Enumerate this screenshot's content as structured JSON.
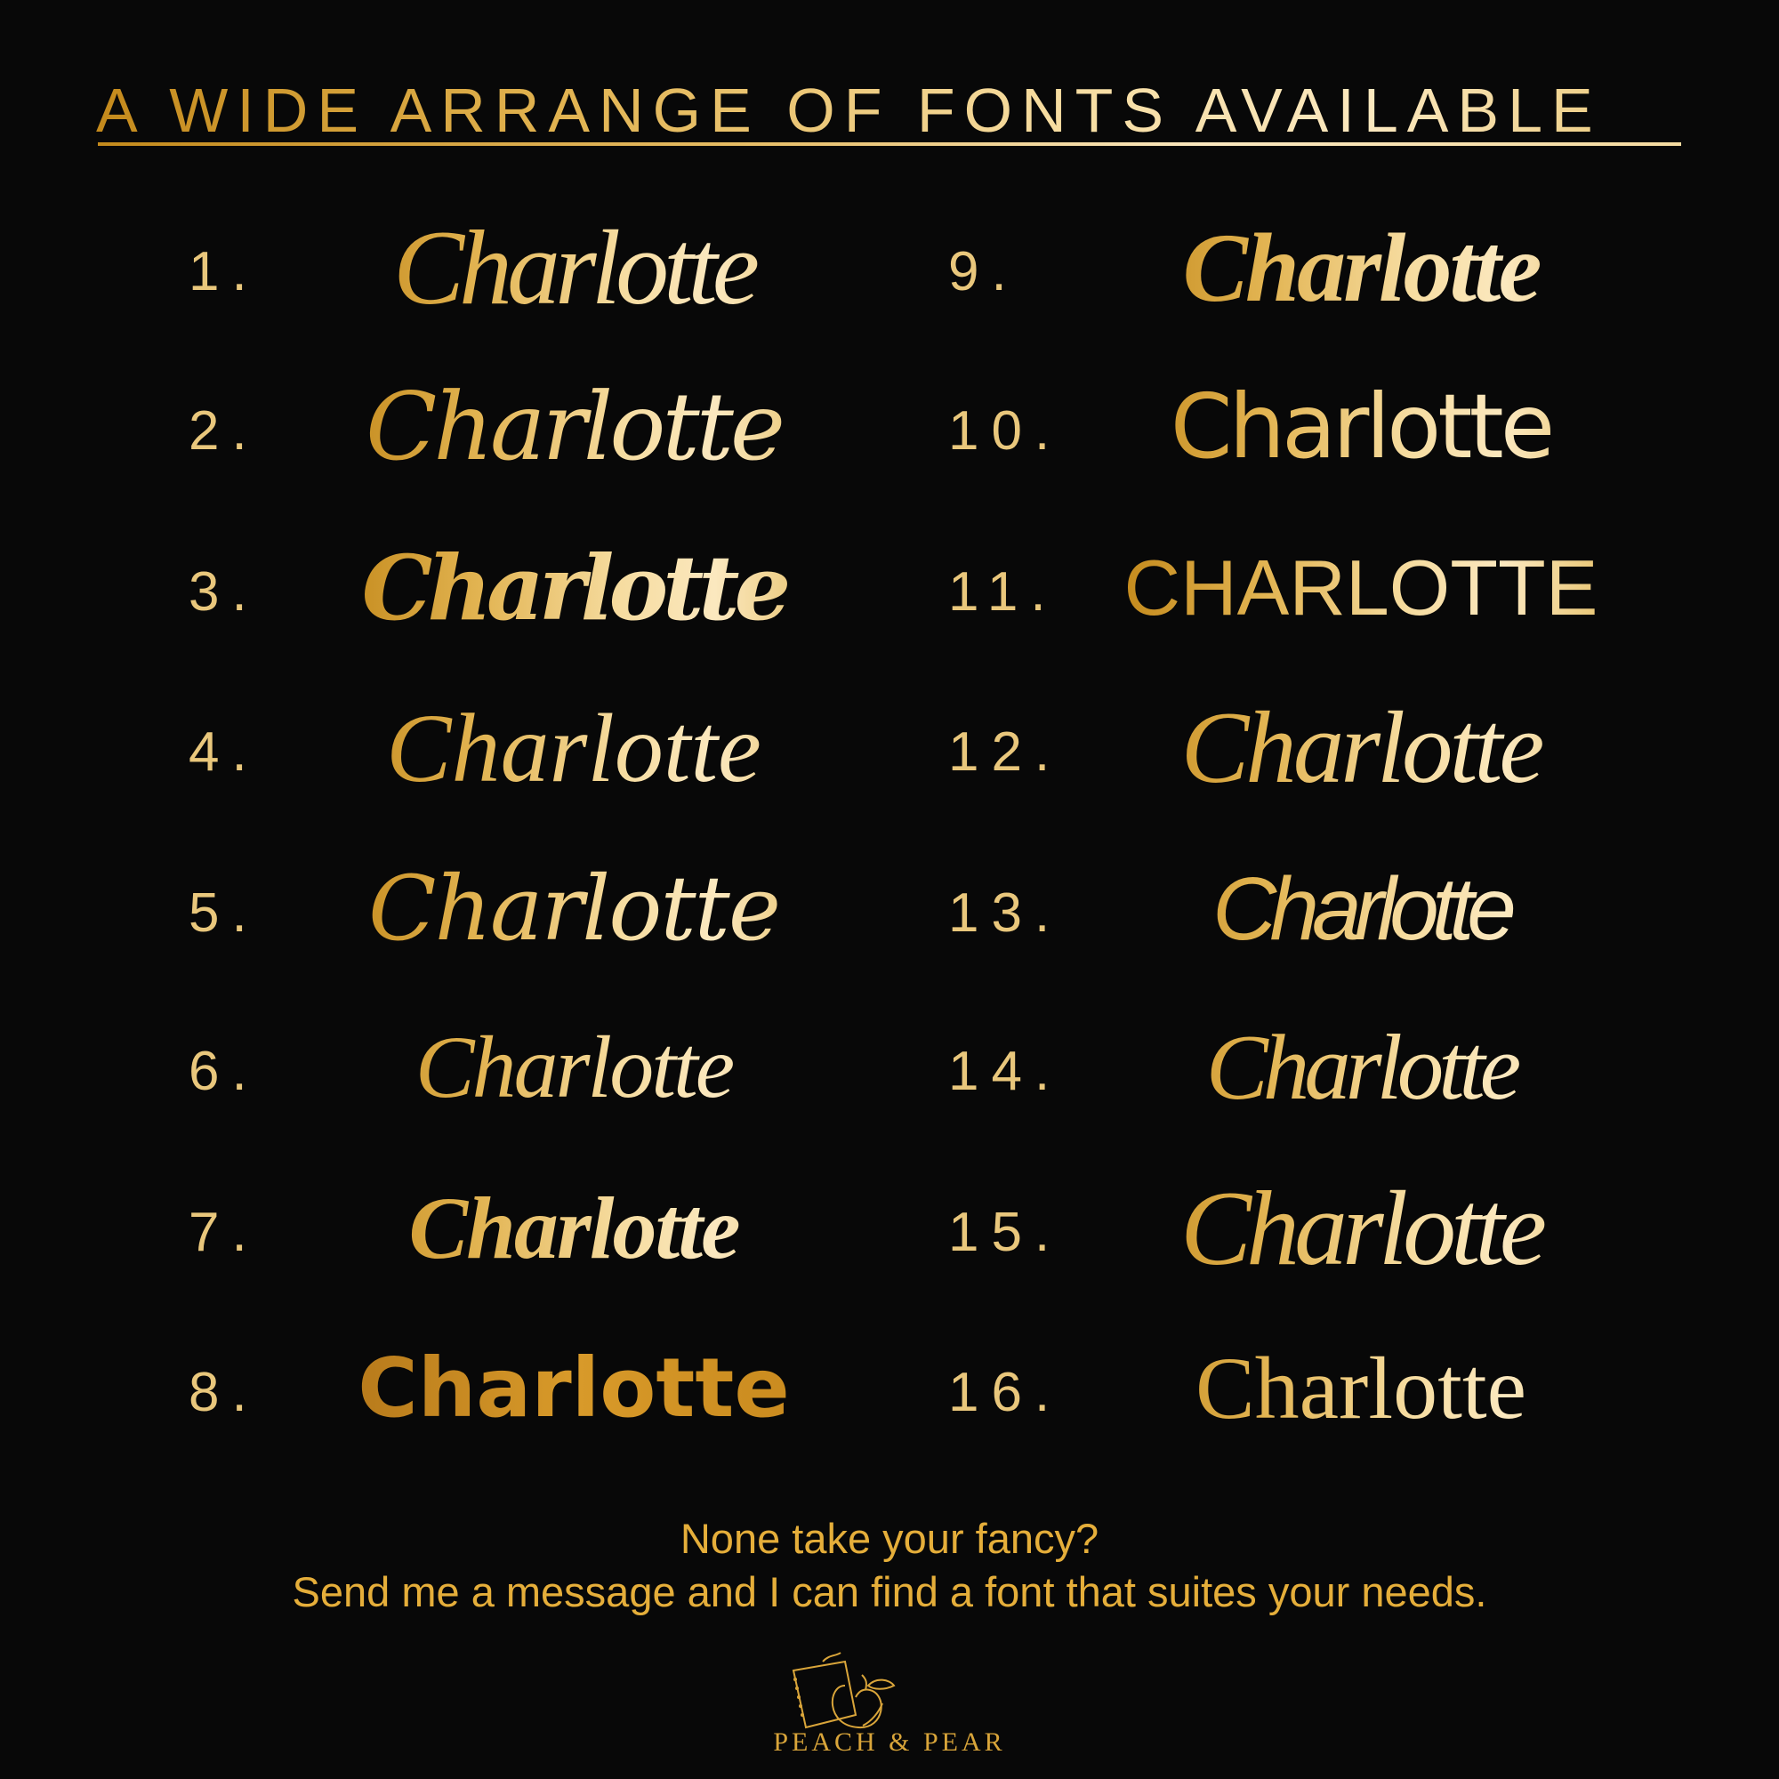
{
  "header": {
    "title": "A WIDE ARRANGE OF FONTS AVAILABLE"
  },
  "fonts": [
    {
      "number": "1.",
      "sample": "Charlotte"
    },
    {
      "number": "2.",
      "sample": "Charlotte"
    },
    {
      "number": "3.",
      "sample": "Charlotte"
    },
    {
      "number": "4.",
      "sample": "Charlotte"
    },
    {
      "number": "5.",
      "sample": "Charlotte"
    },
    {
      "number": "6.",
      "sample": "Charlotte"
    },
    {
      "number": "7.",
      "sample": "Charlotte"
    },
    {
      "number": "8.",
      "sample": "Charlotte"
    },
    {
      "number": "9.",
      "sample": "Charlotte"
    },
    {
      "number": "10.",
      "sample": "Charlotte"
    },
    {
      "number": "11.",
      "sample": "CHARLOTTE"
    },
    {
      "number": "12.",
      "sample": "Charlotte"
    },
    {
      "number": "13.",
      "sample": "Charlotte"
    },
    {
      "number": "14.",
      "sample": "Charlotte"
    },
    {
      "number": "15.",
      "sample": "Charlotte"
    },
    {
      "number": "16.",
      "sample": "Charlotte"
    }
  ],
  "footer": {
    "line1": "None take your fancy?",
    "line2": "Send me a message and I can find a font that suites your needs.",
    "brand": "PEACH & PEAR"
  },
  "colors": {
    "background": "#080808",
    "gold": "#e2b452",
    "light_gold": "#fbe8bf"
  }
}
